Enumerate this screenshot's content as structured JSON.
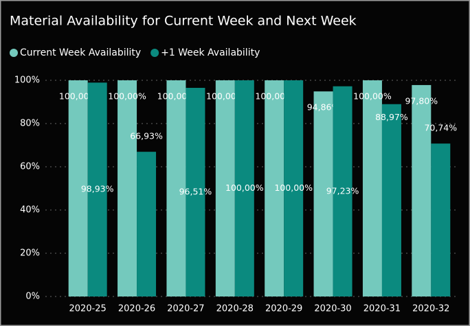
{
  "chart_data": {
    "type": "bar",
    "title": "Material Availability for Current Week and Next Week",
    "categories": [
      "2020-25",
      "2020-26",
      "2020-27",
      "2020-28",
      "2020-29",
      "2020-30",
      "2020-31",
      "2020-32"
    ],
    "series": [
      {
        "name": "Current Week Availability",
        "color": "#74c9bd",
        "values": [
          100,
          100,
          100,
          100,
          100,
          94.86,
          100,
          97.8
        ],
        "value_labels": [
          "100,00%",
          "100,00%",
          "100,00%",
          "100,00%",
          "100,00%",
          "94,86%",
          "100,00%",
          "97,80%"
        ]
      },
      {
        "name": "+1 Week Availability",
        "color": "#0b8a7f",
        "values": [
          98.93,
          66.93,
          96.51,
          100,
          100,
          97.23,
          88.97,
          70.74
        ],
        "value_labels": [
          "98,93%",
          "66,93%",
          "96,51%",
          "100,00%",
          "100,00%",
          "97,23%",
          "88,97%",
          "70,74%"
        ]
      }
    ],
    "ylim": [
      0,
      100
    ],
    "yticks": [
      {
        "value": 0,
        "label": "0%"
      },
      {
        "value": 20,
        "label": "20%"
      },
      {
        "value": 40,
        "label": "40%"
      },
      {
        "value": 60,
        "label": "60%"
      },
      {
        "value": 80,
        "label": "80%"
      },
      {
        "value": 100,
        "label": "100%"
      }
    ],
    "grid": true,
    "legend": "top-left"
  }
}
